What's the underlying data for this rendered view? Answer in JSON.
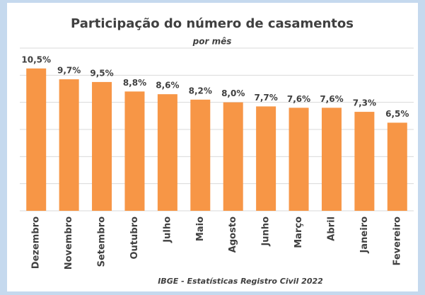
{
  "chart_data": {
    "type": "bar",
    "title": "Participação  do número de casamentos",
    "subtitle": "por mês",
    "source": "IBGE - Estatísticas Registro Civil 2022",
    "categories": [
      "Dezembro",
      "Novembro",
      "Setembro",
      "Outubro",
      "Julho",
      "Maio",
      "Agosto",
      "Junho",
      "Março",
      "Abril",
      "Janeiro",
      "Fevereiro"
    ],
    "values": [
      10.5,
      9.7,
      9.5,
      8.8,
      8.6,
      8.2,
      8.0,
      7.7,
      7.6,
      7.6,
      7.3,
      6.5
    ],
    "value_labels": [
      "10,5%",
      "9,7%",
      "9,5%",
      "8,8%",
      "8,6%",
      "8,2%",
      "8,0%",
      "7,7%",
      "7,6%",
      "7,6%",
      "7,3%",
      "6,5%"
    ],
    "color": "#f79646",
    "ylim": [
      0,
      12
    ],
    "yticks": [
      0,
      2,
      4,
      6,
      8,
      10,
      12
    ],
    "grid": true
  }
}
